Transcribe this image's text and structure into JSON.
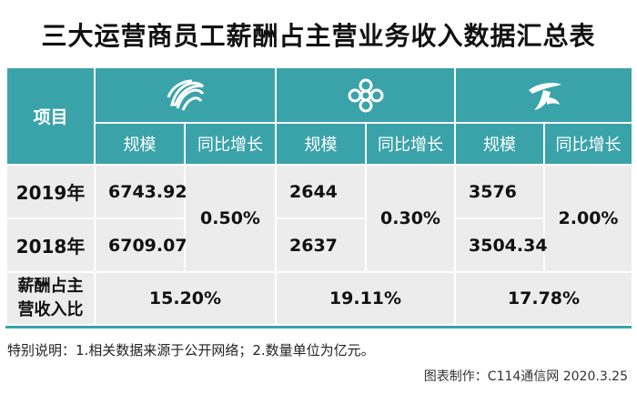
{
  "title": "三大运营商员工薪酬占主营业务收入数据汇总表",
  "header": {
    "item_label": "项目",
    "operators": [
      {
        "logo": "china-mobile-logo",
        "scale_label": "规模",
        "growth_label": "同比增长"
      },
      {
        "logo": "china-unicom-logo",
        "scale_label": "规模",
        "growth_label": "同比增长"
      },
      {
        "logo": "china-telecom-logo",
        "scale_label": "规模",
        "growth_label": "同比增长"
      }
    ]
  },
  "rows": {
    "y2019": {
      "label": "2019年",
      "mobile": "6743.92",
      "unicom": "2644",
      "telecom": "3576"
    },
    "y2018": {
      "label": "2018年",
      "mobile": "6709.07",
      "unicom": "2637",
      "telecom": "3504.34"
    },
    "growth": {
      "mobile": "0.50%",
      "unicom": "0.30%",
      "telecom": "2.00%"
    },
    "ratio": {
      "label_line1": "薪酬占主",
      "label_line2": "营收入比",
      "mobile": "15.20%",
      "unicom": "19.11%",
      "telecom": "17.78%"
    }
  },
  "note": "特别说明：1.相关数据来源于公开网络；2.数量单位为亿元。",
  "credit": "图表制作：C114通信网 2020.3.25",
  "colors": {
    "header": "#3aa3a9",
    "body": "#ececec"
  }
}
